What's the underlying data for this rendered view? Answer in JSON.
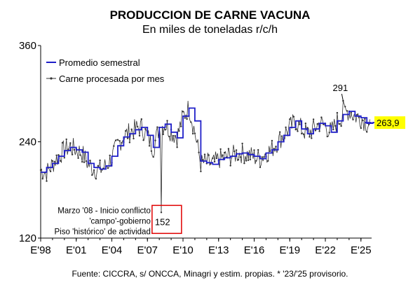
{
  "chart_data": {
    "type": "line",
    "title": "PRODUCCION DE CARNE VACUNA",
    "subtitle": "En miles de toneladas r/c/h",
    "y_ticks": [
      "360",
      "240",
      "120"
    ],
    "ylim": [
      120,
      360
    ],
    "x_ticks": [
      "E'98",
      "E'01",
      "E'04",
      "E'07",
      "E'10",
      "E'13",
      "E'16",
      "E'19",
      "E'22",
      "E'25"
    ],
    "xlim_years": [
      1998,
      2025.9
    ],
    "legend": {
      "position": "top-left",
      "entries": [
        "Promedio semestral",
        "Carne procesada por mes"
      ]
    },
    "series": [
      {
        "name": "Promedio semestral",
        "color": "#1f1fc8",
        "x_start_year": 1998,
        "step_years": 0.5,
        "values": [
          202,
          208,
          213,
          222,
          229,
          233,
          230,
          227,
          213,
          208,
          206,
          210,
          222,
          235,
          246,
          250,
          255,
          258,
          248,
          233,
          258,
          262,
          252,
          245,
          272,
          282,
          266,
          216,
          214,
          212,
          218,
          220,
          222,
          225,
          226,
          224,
          222,
          219,
          226,
          230,
          240,
          248,
          258,
          266,
          256,
          250,
          256,
          263,
          260,
          252,
          266,
          274,
          278,
          272,
          270,
          263,
          264
        ]
      },
      {
        "name": "Carne procesada por mes",
        "color": "#333333",
        "x_start_year": 1998,
        "step_years": 0.0833333,
        "anchor_values": [
          205,
          202,
          212,
          222,
          230,
          234,
          230,
          226,
          212,
          206,
          205,
          210,
          220,
          236,
          247,
          252,
          256,
          258,
          247,
          232,
          258,
          262,
          252,
          246,
          272,
          283,
          252,
          213,
          214,
          212,
          218,
          220,
          222,
          225,
          226,
          224,
          221,
          219,
          226,
          231,
          240,
          249,
          258,
          266,
          256,
          250,
          256,
          263,
          260,
          252,
          266,
          274,
          279,
          272,
          270,
          263,
          264
        ]
      }
    ],
    "annotations": [
      {
        "text": "291",
        "x_year": 2023.5,
        "y": 291
      },
      {
        "text": "152",
        "x_year": 2008.1,
        "y": 152
      },
      {
        "text": "263,9",
        "x_year": 2025.9,
        "y": 263.9
      }
    ],
    "note_lines": [
      "Marzo '08 - Inicio conflicto",
      "'campo'-gobierno",
      "Piso 'histórico' de actividad"
    ],
    "highlight_color": "#ffff00",
    "callout_box_color": "#e00000",
    "source": "Fuente: CICCRA, s/ ONCCA, Minagri y estim. propias. * '23/'25 provisorio."
  }
}
